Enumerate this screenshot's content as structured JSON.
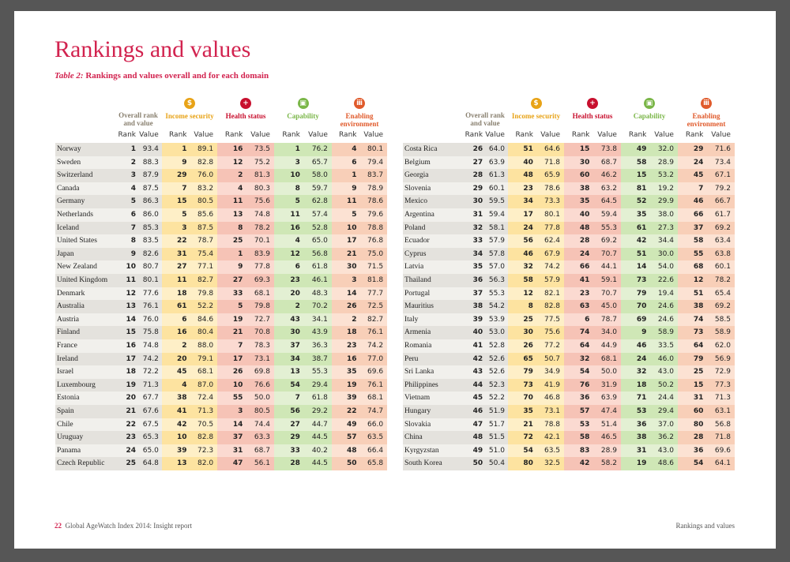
{
  "title": "Rankings and values",
  "subtitle": {
    "label": "Table 2:",
    "text": " Rankings and values overall and for each domain"
  },
  "column_groups": [
    "Overall rank and value",
    "Income security",
    "Health status",
    "Capability",
    "Enabling environment"
  ],
  "subheaders": [
    "Rank",
    "Value"
  ],
  "tables": [
    {
      "rows": [
        [
          "Norway",
          "1",
          "93.4",
          "1",
          "89.1",
          "16",
          "73.5",
          "1",
          "76.2",
          "4",
          "80.1"
        ],
        [
          "Sweden",
          "2",
          "88.3",
          "9",
          "82.8",
          "12",
          "75.2",
          "3",
          "65.7",
          "6",
          "79.4"
        ],
        [
          "Switzerland",
          "3",
          "87.9",
          "29",
          "76.0",
          "2",
          "81.3",
          "10",
          "58.0",
          "1",
          "83.7"
        ],
        [
          "Canada",
          "4",
          "87.5",
          "7",
          "83.2",
          "4",
          "80.3",
          "8",
          "59.7",
          "9",
          "78.9"
        ],
        [
          "Germany",
          "5",
          "86.3",
          "15",
          "80.5",
          "11",
          "75.6",
          "5",
          "62.8",
          "11",
          "78.6"
        ],
        [
          "Netherlands",
          "6",
          "86.0",
          "5",
          "85.6",
          "13",
          "74.8",
          "11",
          "57.4",
          "5",
          "79.6"
        ],
        [
          "Iceland",
          "7",
          "85.3",
          "3",
          "87.5",
          "8",
          "78.2",
          "16",
          "52.8",
          "10",
          "78.8"
        ],
        [
          "United States",
          "8",
          "83.5",
          "22",
          "78.7",
          "25",
          "70.1",
          "4",
          "65.0",
          "17",
          "76.8"
        ],
        [
          "Japan",
          "9",
          "82.6",
          "31",
          "75.4",
          "1",
          "83.9",
          "12",
          "56.8",
          "21",
          "75.0"
        ],
        [
          "New Zealand",
          "10",
          "80.7",
          "27",
          "77.1",
          "9",
          "77.8",
          "6",
          "61.8",
          "30",
          "71.5"
        ],
        [
          "United Kingdom",
          "11",
          "80.1",
          "11",
          "82.7",
          "27",
          "69.3",
          "23",
          "46.1",
          "3",
          "81.8"
        ],
        [
          "Denmark",
          "12",
          "77.6",
          "18",
          "79.8",
          "33",
          "68.1",
          "20",
          "48.3",
          "14",
          "77.7"
        ],
        [
          "Australia",
          "13",
          "76.1",
          "61",
          "52.2",
          "5",
          "79.8",
          "2",
          "70.2",
          "26",
          "72.5"
        ],
        [
          "Austria",
          "14",
          "76.0",
          "6",
          "84.6",
          "19",
          "72.7",
          "43",
          "34.1",
          "2",
          "82.7"
        ],
        [
          "Finland",
          "15",
          "75.8",
          "16",
          "80.4",
          "21",
          "70.8",
          "30",
          "43.9",
          "18",
          "76.1"
        ],
        [
          "France",
          "16",
          "74.8",
          "2",
          "88.0",
          "7",
          "78.3",
          "37",
          "36.3",
          "23",
          "74.2"
        ],
        [
          "Ireland",
          "17",
          "74.2",
          "20",
          "79.1",
          "17",
          "73.1",
          "34",
          "38.7",
          "16",
          "77.0"
        ],
        [
          "Israel",
          "18",
          "72.2",
          "45",
          "68.1",
          "26",
          "69.8",
          "13",
          "55.3",
          "35",
          "69.6"
        ],
        [
          "Luxembourg",
          "19",
          "71.3",
          "4",
          "87.0",
          "10",
          "76.6",
          "54",
          "29.4",
          "19",
          "76.1"
        ],
        [
          "Estonia",
          "20",
          "67.7",
          "38",
          "72.4",
          "55",
          "50.0",
          "7",
          "61.8",
          "39",
          "68.1"
        ],
        [
          "Spain",
          "21",
          "67.6",
          "41",
          "71.3",
          "3",
          "80.5",
          "56",
          "29.2",
          "22",
          "74.7"
        ],
        [
          "Chile",
          "22",
          "67.5",
          "42",
          "70.5",
          "14",
          "74.4",
          "27",
          "44.7",
          "49",
          "66.0"
        ],
        [
          "Uruguay",
          "23",
          "65.3",
          "10",
          "82.8",
          "37",
          "63.3",
          "29",
          "44.5",
          "57",
          "63.5"
        ],
        [
          "Panama",
          "24",
          "65.0",
          "39",
          "72.3",
          "31",
          "68.7",
          "33",
          "40.2",
          "48",
          "66.4"
        ],
        [
          "Czech Republic",
          "25",
          "64.8",
          "13",
          "82.0",
          "47",
          "56.1",
          "28",
          "44.5",
          "50",
          "65.8"
        ]
      ]
    },
    {
      "rows": [
        [
          "Costa Rica",
          "26",
          "64.0",
          "51",
          "64.6",
          "15",
          "73.8",
          "49",
          "32.0",
          "29",
          "71.6"
        ],
        [
          "Belgium",
          "27",
          "63.9",
          "40",
          "71.8",
          "30",
          "68.7",
          "58",
          "28.9",
          "24",
          "73.4"
        ],
        [
          "Georgia",
          "28",
          "61.3",
          "48",
          "65.9",
          "60",
          "46.2",
          "15",
          "53.2",
          "45",
          "67.1"
        ],
        [
          "Slovenia",
          "29",
          "60.1",
          "23",
          "78.6",
          "38",
          "63.2",
          "81",
          "19.2",
          "7",
          "79.2"
        ],
        [
          "Mexico",
          "30",
          "59.5",
          "34",
          "73.3",
          "35",
          "64.5",
          "52",
          "29.9",
          "46",
          "66.7"
        ],
        [
          "Argentina",
          "31",
          "59.4",
          "17",
          "80.1",
          "40",
          "59.4",
          "35",
          "38.0",
          "66",
          "61.7"
        ],
        [
          "Poland",
          "32",
          "58.1",
          "24",
          "77.8",
          "48",
          "55.3",
          "61",
          "27.3",
          "37",
          "69.2"
        ],
        [
          "Ecuador",
          "33",
          "57.9",
          "56",
          "62.4",
          "28",
          "69.2",
          "42",
          "34.4",
          "58",
          "63.4"
        ],
        [
          "Cyprus",
          "34",
          "57.8",
          "46",
          "67.9",
          "24",
          "70.7",
          "51",
          "30.0",
          "55",
          "63.8"
        ],
        [
          "Latvia",
          "35",
          "57.0",
          "32",
          "74.2",
          "66",
          "44.1",
          "14",
          "54.0",
          "68",
          "60.1"
        ],
        [
          "Thailand",
          "36",
          "56.3",
          "58",
          "57.9",
          "41",
          "59.1",
          "73",
          "22.6",
          "12",
          "78.2"
        ],
        [
          "Portugal",
          "37",
          "55.3",
          "12",
          "82.1",
          "23",
          "70.7",
          "79",
          "19.4",
          "51",
          "65.4"
        ],
        [
          "Mauritius",
          "38",
          "54.2",
          "8",
          "82.8",
          "63",
          "45.0",
          "70",
          "24.6",
          "38",
          "69.2"
        ],
        [
          "Italy",
          "39",
          "53.9",
          "25",
          "77.5",
          "6",
          "78.7",
          "69",
          "24.6",
          "74",
          "58.5"
        ],
        [
          "Armenia",
          "40",
          "53.0",
          "30",
          "75.6",
          "74",
          "34.0",
          "9",
          "58.9",
          "73",
          "58.9"
        ],
        [
          "Romania",
          "41",
          "52.8",
          "26",
          "77.2",
          "64",
          "44.9",
          "46",
          "33.5",
          "64",
          "62.0"
        ],
        [
          "Peru",
          "42",
          "52.6",
          "65",
          "50.7",
          "32",
          "68.1",
          "24",
          "46.0",
          "79",
          "56.9"
        ],
        [
          "Sri Lanka",
          "43",
          "52.6",
          "79",
          "34.9",
          "54",
          "50.0",
          "32",
          "43.0",
          "25",
          "72.9"
        ],
        [
          "Philippines",
          "44",
          "52.3",
          "73",
          "41.9",
          "76",
          "31.9",
          "18",
          "50.2",
          "15",
          "77.3"
        ],
        [
          "Vietnam",
          "45",
          "52.2",
          "70",
          "46.8",
          "36",
          "63.9",
          "71",
          "24.4",
          "31",
          "71.3"
        ],
        [
          "Hungary",
          "46",
          "51.9",
          "35",
          "73.1",
          "57",
          "47.4",
          "53",
          "29.4",
          "60",
          "63.1"
        ],
        [
          "Slovakia",
          "47",
          "51.7",
          "21",
          "78.8",
          "53",
          "51.4",
          "36",
          "37.0",
          "80",
          "56.8"
        ],
        [
          "China",
          "48",
          "51.5",
          "72",
          "42.1",
          "58",
          "46.5",
          "38",
          "36.2",
          "28",
          "71.8"
        ],
        [
          "Kyrgyzstan",
          "49",
          "51.0",
          "54",
          "63.5",
          "83",
          "28.9",
          "31",
          "43.0",
          "36",
          "69.6"
        ],
        [
          "South Korea",
          "50",
          "50.4",
          "80",
          "32.5",
          "42",
          "58.2",
          "19",
          "48.6",
          "54",
          "64.1"
        ]
      ]
    }
  ],
  "footer": {
    "page": "22",
    "report": "Global AgeWatch Index 2014: Insight report",
    "section": "Rankings and values"
  }
}
